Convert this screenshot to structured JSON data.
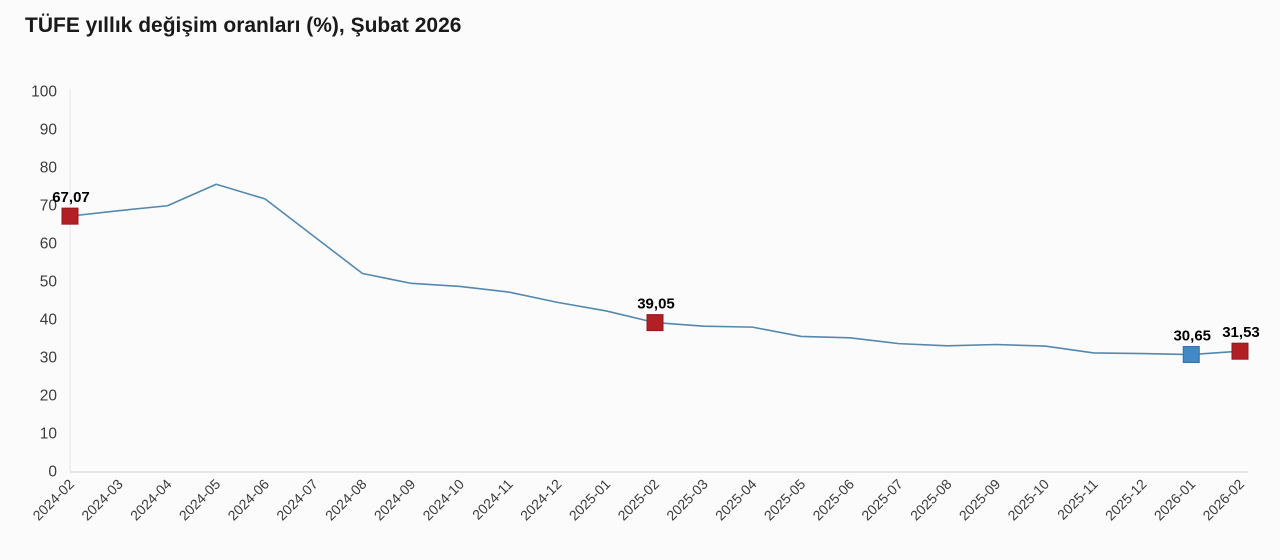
{
  "chart_data": {
    "type": "line",
    "title": "TÜFE yıllık değişim oranları (%), Şubat 2026",
    "xlabel": "",
    "ylabel": "",
    "ylim": [
      0,
      100
    ],
    "ytick_step": 10,
    "grid": false,
    "legend": "none",
    "line_color": "#5588ad",
    "axis_line_color": "#e0e0e0",
    "left_axis_line_color": "#ececec",
    "tick_label_color": "#3c3c3c",
    "categories": [
      "2024-02",
      "2024-03",
      "2024-04",
      "2024-05",
      "2024-06",
      "2024-07",
      "2024-08",
      "2024-09",
      "2024-10",
      "2024-11",
      "2024-12",
      "2025-01",
      "2025-02",
      "2025-03",
      "2025-04",
      "2025-05",
      "2025-06",
      "2025-07",
      "2025-08",
      "2025-09",
      "2025-10",
      "2025-11",
      "2025-12",
      "2026-01",
      "2026-02"
    ],
    "values": [
      67.07,
      68.5,
      69.8,
      75.45,
      71.6,
      61.78,
      51.97,
      49.38,
      48.58,
      47.09,
      44.38,
      42.12,
      39.05,
      38.1,
      37.86,
      35.41,
      35.05,
      33.52,
      32.95,
      33.29,
      32.87,
      31.07,
      30.9,
      30.65,
      31.53
    ],
    "labeled_points": [
      {
        "category": "2024-02",
        "index": 0,
        "value": 67.07,
        "label": "67,07",
        "marker_color": "#b22026",
        "marker_stroke": "#8e191e"
      },
      {
        "category": "2025-02",
        "index": 12,
        "value": 39.05,
        "label": "39,05",
        "marker_color": "#b22026",
        "marker_stroke": "#8e191e"
      },
      {
        "category": "2026-01",
        "index": 23,
        "value": 30.65,
        "label": "30,65",
        "marker_color": "#4189c7",
        "marker_stroke": "#336fa5"
      },
      {
        "category": "2026-02",
        "index": 24,
        "value": 31.53,
        "label": "31,53",
        "marker_color": "#b22026",
        "marker_stroke": "#8e191e"
      }
    ]
  }
}
